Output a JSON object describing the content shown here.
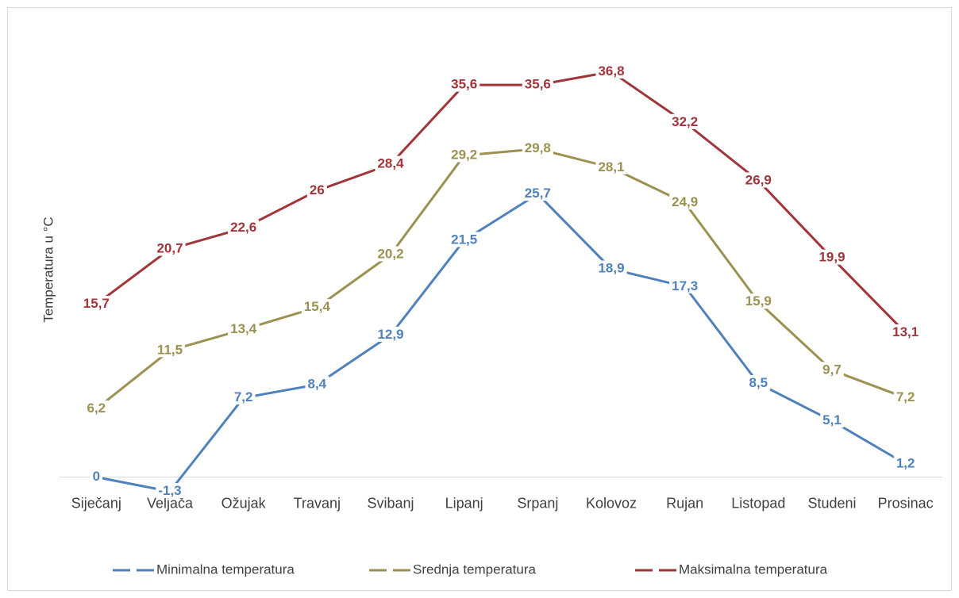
{
  "chart_data": {
    "type": "line",
    "y_axis_label": "Temperatura u °C",
    "categories": [
      "Siječanj",
      "Veljača",
      "Ožujak",
      "Travanj",
      "Svibanj",
      "Lipanj",
      "Srpanj",
      "Kolovoz",
      "Rujan",
      "Listopad",
      "Studeni",
      "Prosinac"
    ],
    "ylim": [
      -5,
      40
    ],
    "series": [
      {
        "name": "Minimalna temperatura",
        "color": "#4f81bd",
        "values": [
          0,
          -1.3,
          7.2,
          8.4,
          12.9,
          21.5,
          25.7,
          18.9,
          17.3,
          8.5,
          5.1,
          1.2
        ],
        "value_labels": [
          "0",
          "-1,3",
          "7,2",
          "8,4",
          "12,9",
          "21,5",
          "25,7",
          "18,9",
          "17,3",
          "8,5",
          "5,1",
          "1,2"
        ]
      },
      {
        "name": "Srednja temperatura",
        "color": "#9b9150",
        "values": [
          6.2,
          11.5,
          13.4,
          15.4,
          20.2,
          29.2,
          29.8,
          28.1,
          24.9,
          15.9,
          9.7,
          7.2
        ],
        "value_labels": [
          "6,2",
          "11,5",
          "13,4",
          "15,4",
          "20,2",
          "29,2",
          "29,8",
          "28,1",
          "24,9",
          "15,9",
          "9,7",
          "7,2"
        ]
      },
      {
        "name": "Maksimalna temperatura",
        "color": "#a0353a",
        "values": [
          15.7,
          20.7,
          22.6,
          26,
          28.4,
          35.6,
          35.6,
          36.8,
          32.2,
          26.9,
          19.9,
          13.1
        ],
        "value_labels": [
          "15,7",
          "20,7",
          "22,6",
          "26",
          "28,4",
          "35,6",
          "35,6",
          "36,8",
          "32,2",
          "26,9",
          "19,9",
          "13,1"
        ]
      }
    ],
    "legend": "bottom"
  }
}
